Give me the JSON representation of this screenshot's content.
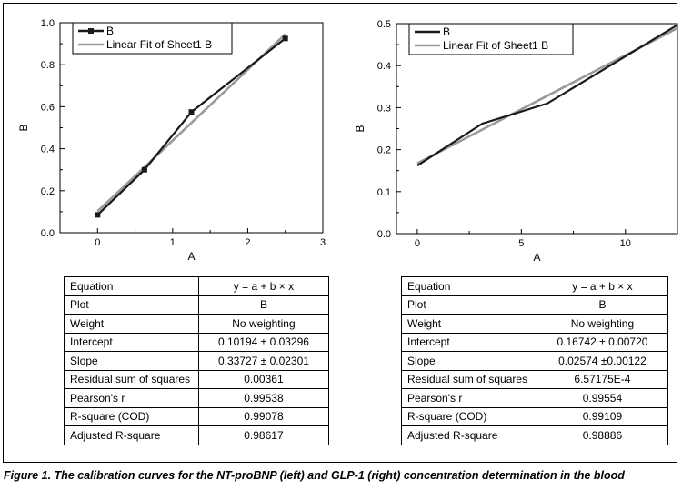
{
  "chart_data": [
    {
      "type": "line",
      "xlabel": "A",
      "ylabel": "B",
      "xlim": [
        -0.5,
        3
      ],
      "ylim": [
        0,
        1.0
      ],
      "xticks": [
        "0",
        "1",
        "2",
        "3"
      ],
      "xtick_values": [
        0,
        1,
        2,
        3
      ],
      "yticks": [
        "0.0",
        "0.2",
        "0.4",
        "0.6",
        "0.8",
        "1.0"
      ],
      "ytick_values": [
        0,
        0.2,
        0.4,
        0.6,
        0.8,
        1.0
      ],
      "grid": false,
      "legend": "top-left",
      "series": [
        {
          "name": "B",
          "color": "#1a1a1a",
          "markers": true,
          "x": [
            0,
            0.625,
            1.25,
            2.5
          ],
          "y": [
            0.085,
            0.3,
            0.575,
            0.925
          ]
        },
        {
          "name": "Linear Fit of Sheet1 B",
          "color": "#999999",
          "markers": false,
          "x": [
            0,
            2.5
          ],
          "y": [
            0.10194,
            0.94512
          ]
        }
      ]
    },
    {
      "type": "line",
      "xlabel": "A",
      "ylabel": "B",
      "xlim": [
        -1,
        12.5
      ],
      "ylim": [
        0,
        0.5
      ],
      "xticks": [
        "0",
        "5",
        "10"
      ],
      "xtick_values": [
        0,
        5,
        10
      ],
      "yticks": [
        "0.0",
        "0.1",
        "0.2",
        "0.3",
        "0.4",
        "0.5"
      ],
      "ytick_values": [
        0,
        0.1,
        0.2,
        0.3,
        0.4,
        0.5
      ],
      "grid": false,
      "legend": "top-left",
      "series": [
        {
          "name": "B",
          "color": "#1a1a1a",
          "markers": false,
          "x": [
            0,
            3.125,
            6.25,
            12.5
          ],
          "y": [
            0.162,
            0.262,
            0.31,
            0.497
          ]
        },
        {
          "name": "Linear Fit of Sheet1 B",
          "color": "#999999",
          "markers": false,
          "x": [
            0,
            12.5
          ],
          "y": [
            0.16742,
            0.48917
          ]
        }
      ]
    }
  ],
  "tables": [
    {
      "rows": [
        {
          "label": "Equation",
          "value": "y = a + b × x"
        },
        {
          "label": "Plot",
          "value": "B"
        },
        {
          "label": "Weight",
          "value": "No weighting"
        },
        {
          "label": "Intercept",
          "value": "0.10194 ± 0.03296"
        },
        {
          "label": "Slope",
          "value": "0.33727 ± 0.02301"
        },
        {
          "label": "Residual sum of squares",
          "value": "0.00361"
        },
        {
          "label": "Pearson's r",
          "value": "0.99538"
        },
        {
          "label": "R-square (COD)",
          "value": "0.99078"
        },
        {
          "label": "Adjusted R-square",
          "value": "0.98617"
        }
      ]
    },
    {
      "rows": [
        {
          "label": "Equation",
          "value": "y = a + b × x"
        },
        {
          "label": "Plot",
          "value": "B"
        },
        {
          "label": "Weight",
          "value": "No weighting"
        },
        {
          "label": "Intercept",
          "value": "0.16742 ± 0.00720"
        },
        {
          "label": "Slope",
          "value": "0.02574 ±0.00122"
        },
        {
          "label": "Residual sum of squares",
          "value": "6.57175E-4"
        },
        {
          "label": "Pearson's r",
          "value": "0.99554"
        },
        {
          "label": "R-square (COD)",
          "value": "0.99109"
        },
        {
          "label": "Adjusted R-square",
          "value": "0.98886"
        }
      ]
    }
  ],
  "caption": "Figure 1.  The calibration curves for the NT-proBNP (left) and GLP-1 (right) concentration determination in the blood"
}
